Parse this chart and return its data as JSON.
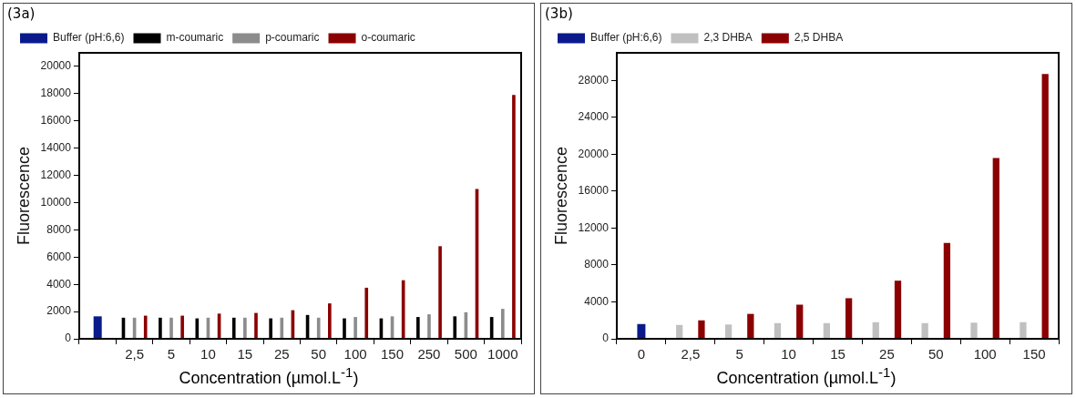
{
  "chart_data": [
    {
      "type": "bar",
      "title": "(3a)",
      "xlabel": "Concentration (µmol.L$^{-1}$)",
      "ylabel": "Fluorescence",
      "categories": [
        null,
        "2,5",
        "5",
        "10",
        "15",
        "25",
        "50",
        "100",
        "150",
        "250",
        "500",
        "1000"
      ],
      "series": [
        {
          "name": "Buffer (pH:6,6)",
          "color": "#0a1a8c",
          "values": [
            1650,
            null,
            null,
            null,
            null,
            null,
            null,
            null,
            null,
            null,
            null,
            null
          ]
        },
        {
          "name": "m-coumaric",
          "color": "#000000",
          "values": [
            null,
            1550,
            1550,
            1500,
            1550,
            1500,
            1750,
            1500,
            1500,
            1600,
            1650,
            1600
          ]
        },
        {
          "name": "p-coumaric",
          "color": "#8c8c8c",
          "values": [
            null,
            1550,
            1550,
            1550,
            1550,
            1550,
            1550,
            1600,
            1650,
            1800,
            1950,
            2200
          ]
        },
        {
          "name": "o-coumaric",
          "color": "#8b0000",
          "values": [
            null,
            1700,
            1700,
            1850,
            1900,
            2100,
            2600,
            3750,
            4300,
            6800,
            11000,
            17900
          ]
        }
      ],
      "ylim": [
        0,
        21000
      ],
      "yticks": [
        0,
        2000,
        4000,
        6000,
        8000,
        10000,
        12000,
        14000,
        16000,
        18000,
        20000
      ],
      "legend": "top"
    },
    {
      "type": "bar",
      "title": "(3b)",
      "xlabel": "Concentration (µmol.L$^{-1}$)",
      "ylabel": "Fluorescence",
      "categories": [
        "0",
        "2,5",
        "5",
        "10",
        "15",
        "25",
        "50",
        "100",
        "150"
      ],
      "series": [
        {
          "name": "Buffer (pH:6,6)",
          "color": "#0a1a8c",
          "values": [
            1600,
            null,
            null,
            null,
            null,
            null,
            null,
            null,
            null
          ]
        },
        {
          "name": "2,3 DHBA",
          "color": "#c0c0c0",
          "values": [
            null,
            1500,
            1550,
            1700,
            1700,
            1800,
            1700,
            1750,
            1800
          ]
        },
        {
          "name": "2,5 DHBA",
          "color": "#8b0000",
          "values": [
            null,
            2000,
            2700,
            3700,
            4400,
            6300,
            10400,
            19600,
            28700
          ]
        }
      ],
      "ylim": [
        0,
        31000
      ],
      "yticks": [
        0,
        4000,
        8000,
        12000,
        16000,
        20000,
        24000,
        28000
      ],
      "legend": "top"
    }
  ]
}
